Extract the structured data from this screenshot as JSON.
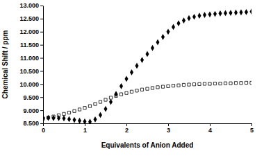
{
  "chart_data": {
    "type": "scatter",
    "x_label": "Equivalents of Anion Added",
    "y_label": "Chemical Shift / ppm",
    "x": [
      0,
      0.125,
      0.25,
      0.375,
      0.5,
      0.625,
      0.75,
      0.875,
      1,
      1.125,
      1.25,
      1.375,
      1.5,
      1.625,
      1.75,
      1.875,
      2,
      2.125,
      2.25,
      2.375,
      2.5,
      2.625,
      2.75,
      2.875,
      3,
      3.125,
      3.25,
      3.375,
      3.5,
      3.625,
      3.75,
      3.875,
      4,
      4.125,
      4.25,
      4.375,
      4.5,
      4.625,
      4.75,
      4.875,
      5
    ],
    "series": [
      {
        "color": "#000000",
        "marker": "diamond",
        "values": [
          8.7,
          8.71,
          8.7,
          8.7,
          8.69,
          8.66,
          8.63,
          8.6,
          8.57,
          8.56,
          8.65,
          8.82,
          9.05,
          9.32,
          9.62,
          9.92,
          10.2,
          10.45,
          10.7,
          10.92,
          11.15,
          11.38,
          11.6,
          11.8,
          12.0,
          12.18,
          12.32,
          12.43,
          12.52,
          12.57,
          12.61,
          12.64,
          12.66,
          12.68,
          12.7,
          12.71,
          12.72,
          12.73,
          12.74,
          12.75,
          12.77
        ]
      },
      {
        "color": "#000000",
        "marker": "open-square",
        "values": [
          8.68,
          8.72,
          8.76,
          8.81,
          8.86,
          8.91,
          8.97,
          9.03,
          9.09,
          9.16,
          9.24,
          9.32,
          9.4,
          9.48,
          9.55,
          9.61,
          9.66,
          9.71,
          9.75,
          9.79,
          9.82,
          9.85,
          9.88,
          9.9,
          9.92,
          9.94,
          9.95,
          9.97,
          9.98,
          9.99,
          10.0,
          10.01,
          10.01,
          10.02,
          10.02,
          10.03,
          10.03,
          10.04,
          10.04,
          10.05,
          10.05
        ]
      }
    ],
    "xlim": [
      0,
      5
    ],
    "xticks": [
      0,
      1,
      2,
      3,
      4,
      5
    ],
    "ylim": [
      8.5,
      13
    ],
    "yticks": [
      {
        "value": 8.5,
        "label": "8.500"
      },
      {
        "value": 9,
        "label": "9.000"
      },
      {
        "value": 9.5,
        "label": "9.500"
      },
      {
        "value": 10,
        "label": "10.000"
      },
      {
        "value": 10.5,
        "label": "10.500"
      },
      {
        "value": 11,
        "label": "11.000"
      },
      {
        "value": 11.5,
        "label": "11.500"
      },
      {
        "value": 12,
        "label": "12.000"
      },
      {
        "value": 12.5,
        "label": "12.500"
      },
      {
        "value": 13,
        "label": "13.000"
      }
    ],
    "grid": false
  }
}
